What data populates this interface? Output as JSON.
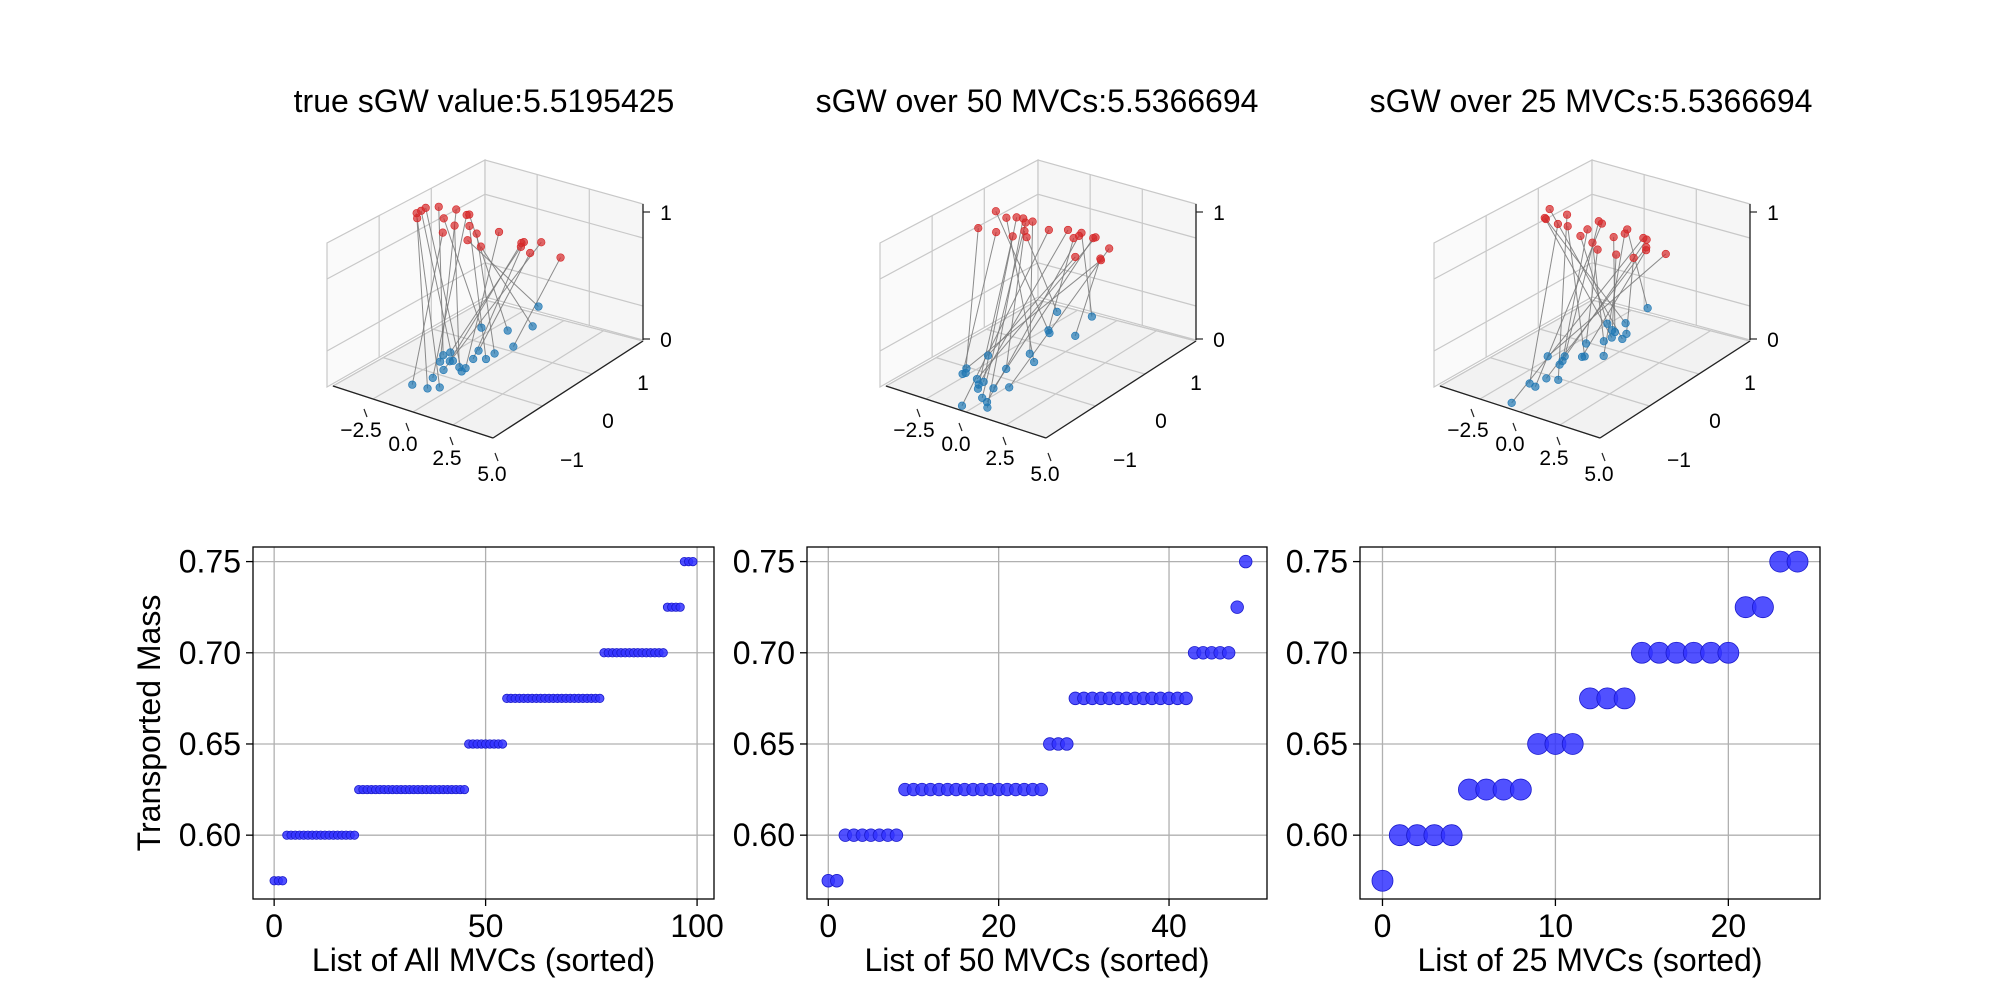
{
  "chart_data": [
    {
      "type": "scatter3d",
      "title": "true sGW value:5.5195425",
      "x_ticks": [
        "−2.5",
        "0.0",
        "2.5",
        "5.0"
      ],
      "y_ticks": [
        "1",
        "0",
        "−1"
      ],
      "z_ticks": [
        "0",
        "1"
      ],
      "grid": true,
      "colors": {
        "source": "#1f77b4",
        "target": "#d62728",
        "links": "#777777"
      }
    },
    {
      "type": "scatter3d",
      "title": "sGW over 50 MVCs:5.5366694",
      "x_ticks": [
        "−2.5",
        "0.0",
        "2.5",
        "5.0"
      ],
      "y_ticks": [
        "1",
        "0",
        "−1"
      ],
      "z_ticks": [
        "0",
        "1"
      ],
      "grid": true,
      "colors": {
        "source": "#1f77b4",
        "target": "#d62728",
        "links": "#777777"
      }
    },
    {
      "type": "scatter3d",
      "title": "sGW over 25 MVCs:5.5366694",
      "x_ticks": [
        "−2.5",
        "0.0",
        "2.5",
        "5.0"
      ],
      "y_ticks": [
        "1",
        "0",
        "−1"
      ],
      "z_ticks": [
        "0",
        "1"
      ],
      "grid": true,
      "colors": {
        "source": "#1f77b4",
        "target": "#d62728",
        "links": "#777777"
      }
    },
    {
      "type": "scatter",
      "xlabel": "List of All MVCs (sorted)",
      "ylabel": "Transported Mass",
      "xlim": [
        -5,
        104
      ],
      "ylim": [
        0.565,
        0.758
      ],
      "x_ticks": [
        0,
        50,
        100
      ],
      "y_ticks": [
        0.6,
        0.65,
        0.7,
        0.75
      ],
      "grid": true,
      "marker_color": "#3333ff",
      "marker_size": "small",
      "steps": [
        {
          "value": 0.575,
          "count": 3
        },
        {
          "value": 0.6,
          "count": 17
        },
        {
          "value": 0.625,
          "count": 26
        },
        {
          "value": 0.65,
          "count": 9
        },
        {
          "value": 0.675,
          "count": 23
        },
        {
          "value": 0.7,
          "count": 15
        },
        {
          "value": 0.725,
          "count": 4
        },
        {
          "value": 0.75,
          "count": 3
        }
      ]
    },
    {
      "type": "scatter",
      "xlabel": "List of 50 MVCs (sorted)",
      "ylabel": "",
      "xlim": [
        -2.5,
        51.5
      ],
      "ylim": [
        0.565,
        0.758
      ],
      "x_ticks": [
        0,
        20,
        40
      ],
      "y_ticks": [
        0.6,
        0.65,
        0.7,
        0.75
      ],
      "grid": true,
      "marker_color": "#3333ff",
      "marker_size": "medium",
      "steps": [
        {
          "value": 0.575,
          "count": 2
        },
        {
          "value": 0.6,
          "count": 7
        },
        {
          "value": 0.625,
          "count": 17
        },
        {
          "value": 0.65,
          "count": 3
        },
        {
          "value": 0.675,
          "count": 14
        },
        {
          "value": 0.7,
          "count": 5
        },
        {
          "value": 0.725,
          "count": 1
        },
        {
          "value": 0.75,
          "count": 1
        }
      ]
    },
    {
      "type": "scatter",
      "xlabel": "List of 25 MVCs (sorted)",
      "ylabel": "",
      "xlim": [
        -1.3,
        25.3
      ],
      "ylim": [
        0.565,
        0.758
      ],
      "x_ticks": [
        0,
        10,
        20
      ],
      "y_ticks": [
        0.6,
        0.65,
        0.7,
        0.75
      ],
      "grid": true,
      "marker_color": "#3333ff",
      "marker_size": "large",
      "steps": [
        {
          "value": 0.575,
          "count": 1
        },
        {
          "value": 0.6,
          "count": 4
        },
        {
          "value": 0.625,
          "count": 4
        },
        {
          "value": 0.65,
          "count": 3
        },
        {
          "value": 0.675,
          "count": 3
        },
        {
          "value": 0.7,
          "count": 6
        },
        {
          "value": 0.725,
          "count": 2
        },
        {
          "value": 0.75,
          "count": 2
        }
      ]
    }
  ]
}
